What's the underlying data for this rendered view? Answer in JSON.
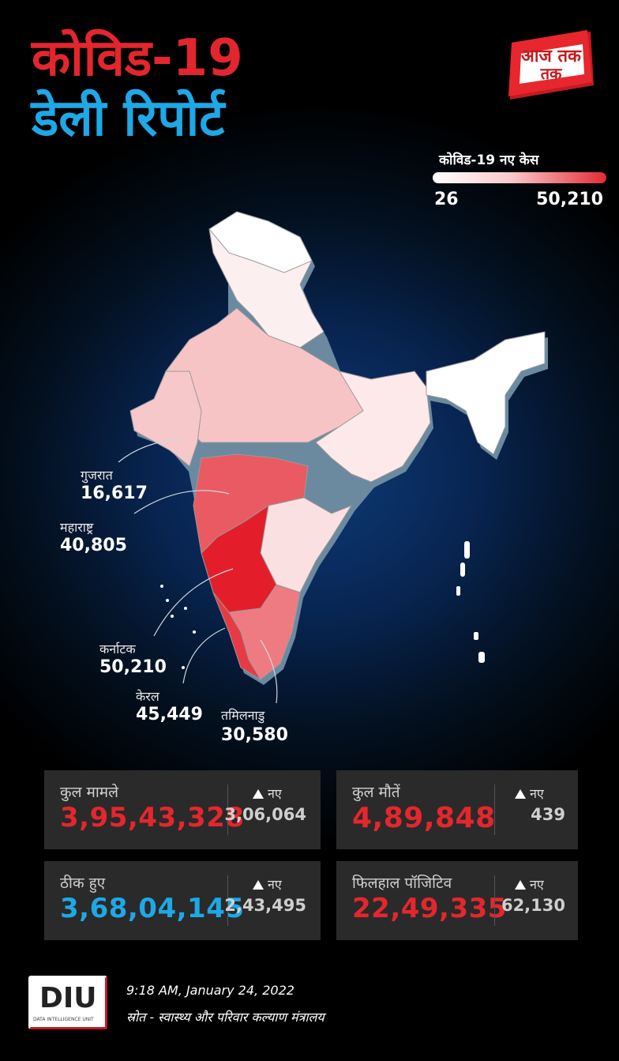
{
  "header": {
    "title_line1": "कोविड-19",
    "title_line2": "डेली रिपोर्ट",
    "logo_text": "आज तक"
  },
  "legend": {
    "title": "कोविड-19 नए केस",
    "min": "26",
    "max": "50,210",
    "colors": [
      "#ffffff",
      "#e32a33"
    ]
  },
  "states": [
    {
      "name": "गुजरात",
      "value": "16,617"
    },
    {
      "name": "महाराष्ट्र",
      "value": "40,805"
    },
    {
      "name": "कर्नाटक",
      "value": "50,210"
    },
    {
      "name": "केरल",
      "value": "45,449"
    },
    {
      "name": "तमिलनाडु",
      "value": "30,580"
    }
  ],
  "stats": {
    "new_label": "नए",
    "total_cases": {
      "label": "कुल मामले",
      "value": "3,95,43,328",
      "new": "3,06,064"
    },
    "total_deaths": {
      "label": "कुल मौतें",
      "value": "4,89,848",
      "new": "439"
    },
    "recovered": {
      "label": "ठीक हुए",
      "value": "3,68,04,145",
      "new": "2,43,495"
    },
    "active": {
      "label": "फिलहाल पॉजिटिव",
      "value": "22,49,335",
      "new": "62,130"
    }
  },
  "footer": {
    "logo_text": "DIU",
    "logo_subtext": "DATA INTELLIGENCE UNIT",
    "timestamp": "9:18 AM, January 24, 2022",
    "source": "स्रोत - स्वास्थ्य और परिवार कल्याण मंत्रालय"
  },
  "colors": {
    "accent_red": "#e3262d",
    "accent_blue": "#1ea8e6",
    "card_bg": "#2a2a2a"
  }
}
